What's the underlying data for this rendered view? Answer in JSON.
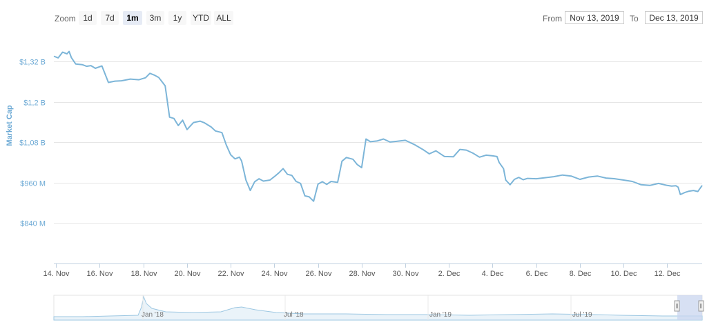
{
  "toolbar": {
    "zoom_label": "Zoom",
    "zoom_buttons": [
      "1d",
      "7d",
      "1m",
      "3m",
      "1y",
      "YTD",
      "ALL"
    ],
    "active_zoom": "1m",
    "from_label": "From",
    "from_value": "Nov 13, 2019",
    "to_label": "To",
    "to_value": "Dec 13, 2019"
  },
  "colors": {
    "line": "#7cb5d8",
    "axis_text": "#6aa8d4",
    "grid": "#e6e6e6",
    "nav_mask": "#c9d5ef"
  },
  "chart_data": {
    "type": "line",
    "ylabel": "Market Cap",
    "y_ticks": [
      "$840 M",
      "$960 M",
      "$1,08 B",
      "$1,2 B",
      "$1,32 B"
    ],
    "y_tick_values": [
      840,
      960,
      1080,
      1200,
      1320
    ],
    "ylim": [
      720,
      1380
    ],
    "x_ticks": [
      "14. Nov",
      "16. Nov",
      "18. Nov",
      "20. Nov",
      "22. Nov",
      "24. Nov",
      "26. Nov",
      "28. Nov",
      "30. Nov",
      "2. Dec",
      "4. Dec",
      "6. Dec",
      "8. Dec",
      "10. Dec",
      "12. Dec"
    ],
    "x_tick_days": [
      0,
      2,
      4,
      6,
      8,
      10,
      12,
      14,
      16,
      18,
      20,
      22,
      24,
      26,
      28
    ],
    "xlim": [
      -0.1,
      29.6
    ],
    "grid": true,
    "series": [
      {
        "values_unit": "M USD",
        "x_days": [
          -0.1,
          0.1,
          0.3,
          0.5,
          0.6,
          0.7,
          0.9,
          1.2,
          1.4,
          1.6,
          1.8,
          2.1,
          2.4,
          2.7,
          3.0,
          3.4,
          3.8,
          4.1,
          4.3,
          4.5,
          4.7,
          5.0,
          5.2,
          5.4,
          5.6,
          5.8,
          6.0,
          6.3,
          6.6,
          6.8,
          7.1,
          7.3,
          7.6,
          7.8,
          8.0,
          8.2,
          8.4,
          8.5,
          8.7,
          8.9,
          9.1,
          9.3,
          9.5,
          9.8,
          10.0,
          10.2,
          10.4,
          10.6,
          10.8,
          11.0,
          11.2,
          11.4,
          11.6,
          11.8,
          12.0,
          12.2,
          12.4,
          12.6,
          12.9,
          13.1,
          13.3,
          13.6,
          13.8,
          14.0,
          14.2,
          14.4,
          14.7,
          15.0,
          15.3,
          15.6,
          16.0,
          16.4,
          16.8,
          17.1,
          17.4,
          17.8,
          18.2,
          18.5,
          18.8,
          19.1,
          19.4,
          19.7,
          20.0,
          20.2,
          20.3,
          20.5,
          20.6,
          20.8,
          21.0,
          21.2,
          21.4,
          21.6,
          22.0,
          22.4,
          22.8,
          23.2,
          23.6,
          24.0,
          24.4,
          24.8,
          25.2,
          25.6,
          26.0,
          26.4,
          26.8,
          27.2,
          27.6,
          28.0,
          28.2,
          28.4,
          28.5,
          28.6,
          28.8,
          29.0,
          29.2,
          29.4,
          29.6
        ],
        "values": [
          1336,
          1331,
          1348,
          1343,
          1350,
          1332,
          1313,
          1311,
          1306,
          1308,
          1300,
          1307,
          1258,
          1262,
          1263,
          1268,
          1266,
          1272,
          1285,
          1280,
          1273,
          1248,
          1155,
          1151,
          1130,
          1146,
          1118,
          1139,
          1143,
          1138,
          1126,
          1114,
          1109,
          1072,
          1043,
          1031,
          1036,
          1025,
          968,
          937,
          963,
          972,
          965,
          968,
          978,
          989,
          1002,
          985,
          982,
          964,
          958,
          921,
          918,
          905,
          956,
          963,
          955,
          964,
          961,
          1024,
          1035,
          1030,
          1014,
          1005,
          1090,
          1082,
          1084,
          1090,
          1081,
          1083,
          1086,
          1074,
          1059,
          1046,
          1055,
          1038,
          1037,
          1059,
          1057,
          1048,
          1036,
          1042,
          1040,
          1038,
          1020,
          1002,
          968,
          954,
          970,
          976,
          969,
          973,
          972,
          975,
          978,
          983,
          980,
          970,
          977,
          980,
          974,
          972,
          968,
          964,
          954,
          952,
          958,
          952,
          950,
          951,
          947,
          925,
          931,
          935,
          937,
          934,
          952
        ]
      }
    ],
    "navigator": {
      "x_labels": [
        "Jan '18",
        "Jul '18",
        "Jan '19",
        "Jul '19"
      ]
    }
  }
}
